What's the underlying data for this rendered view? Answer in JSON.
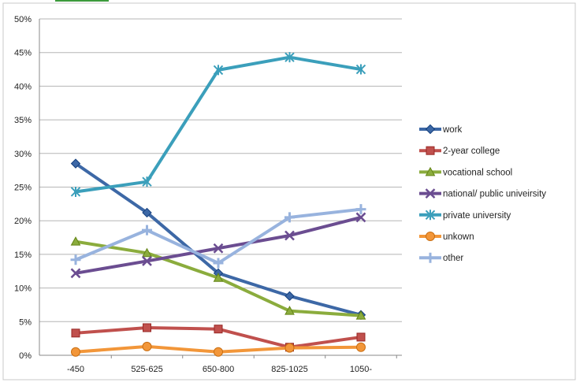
{
  "chart_data": {
    "type": "line",
    "title": "",
    "xlabel": "",
    "ylabel": "",
    "categories": [
      "-450",
      "525-625",
      "650-800",
      "825-1025",
      "1050-"
    ],
    "ylim": [
      0,
      50
    ],
    "yticks": [
      "0%",
      "5%",
      "10%",
      "15%",
      "20%",
      "25%",
      "30%",
      "35%",
      "40%",
      "45%",
      "50%"
    ],
    "grid": true,
    "legend_position": "right",
    "series": [
      {
        "name": "work",
        "color": "#3d68a6",
        "marker": "diamond",
        "values": [
          28.5,
          21.2,
          12.2,
          8.8,
          6.0
        ]
      },
      {
        "name": "2-year college",
        "color": "#c0504d",
        "marker": "square",
        "values": [
          3.3,
          4.1,
          3.9,
          1.2,
          2.7
        ]
      },
      {
        "name": "vocational school",
        "color": "#8bac3d",
        "marker": "triangle",
        "values": [
          16.9,
          15.2,
          11.5,
          6.6,
          5.9
        ]
      },
      {
        "name": "national/ public univeirsity",
        "color": "#6b4d91",
        "marker": "x",
        "values": [
          12.2,
          14.0,
          15.9,
          17.8,
          20.5
        ]
      },
      {
        "name": "private university",
        "color": "#3b9fbb",
        "marker": "star",
        "values": [
          24.3,
          25.8,
          42.4,
          44.3,
          42.5
        ]
      },
      {
        "name": "unkown",
        "color": "#f29639",
        "marker": "circle",
        "values": [
          0.5,
          1.3,
          0.5,
          1.1,
          1.2
        ]
      },
      {
        "name": "other",
        "color": "#98b3de",
        "marker": "plus",
        "values": [
          14.2,
          18.6,
          13.7,
          20.5,
          21.7
        ]
      }
    ]
  }
}
